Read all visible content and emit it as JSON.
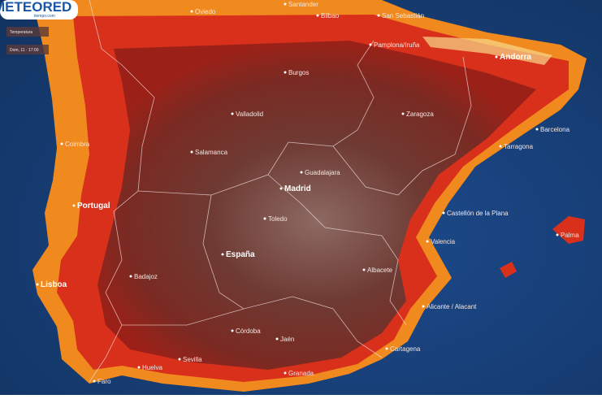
{
  "brand": {
    "logo": "METEORED",
    "site": "tiempo.com"
  },
  "legend": {
    "title": "Temperatura",
    "time": "Dom, 11 · 17:00"
  },
  "places": [
    "Oviedo",
    "Santander",
    "Bilbao",
    "San Sebastián",
    "Pamplona/Iruña",
    "Burgos",
    "Valladolid",
    "Salamanca",
    "Zaragoza",
    "Andorra",
    "Barcelona",
    "Tarragona",
    "Guadalajara",
    "Madrid",
    "Toledo",
    "Portugal",
    "España",
    "Lisboa",
    "Badajoz",
    "Castellón de la Plana",
    "Valencia",
    "Albacete",
    "Alicante / Alacant",
    "Cartagena",
    "Palma",
    "Córdoba",
    "Jaén",
    "Sevilla",
    "Granada",
    "Faro",
    "Huelva",
    "Coimbra"
  ]
}
